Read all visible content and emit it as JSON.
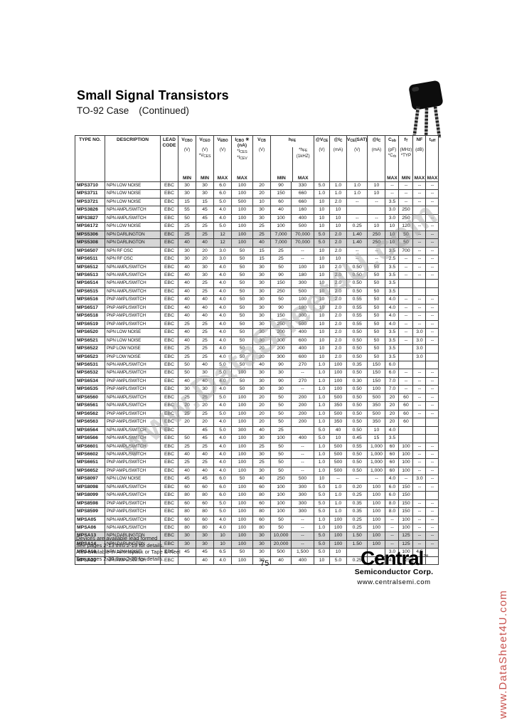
{
  "header": {
    "title": "Small Signal Transistors",
    "subtitle": "TO-92 Case",
    "continued": "(Continued)"
  },
  "table": {
    "columns": [
      {
        "key": "type",
        "w": 42,
        "label": "TYPE NO."
      },
      {
        "key": "desc",
        "w": 78,
        "label": "DESCRIPTION"
      },
      {
        "key": "lead",
        "w": 25,
        "label": "LEAD\nCODE"
      },
      {
        "key": "vcbo",
        "w": 25,
        "label": "V_{CBO}",
        "units": [
          "(V)"
        ],
        "mm": "MIN"
      },
      {
        "key": "vceo",
        "w": 25,
        "label": "V_{CEO}",
        "units": [
          "(V)",
          "*V_{CES}"
        ],
        "mm": "MIN"
      },
      {
        "key": "vebo",
        "w": 25,
        "label": "V_{EBO}",
        "units": [
          "(V)"
        ],
        "mm": "MAX"
      },
      {
        "key": "icbo",
        "w": 30,
        "label": "I_{CBO} ✳",
        "label2": "(nA)",
        "units": [
          "*I_{CES}",
          "*I_{CEV}"
        ],
        "mm": "MAX"
      },
      {
        "key": "vcb",
        "w": 25,
        "label": "V_{CB}",
        "units": [
          "(V)"
        ],
        "mm": ""
      },
      {
        "key": "hfe_min",
        "w": 29
      },
      {
        "key": "hfe_max",
        "w": 32
      },
      {
        "key": "vce",
        "w": 22,
        "label": "@V_{CE}",
        "units": [
          "(V)"
        ],
        "mm": ""
      },
      {
        "key": "ic",
        "w": 24,
        "label": "@I_{C}",
        "units": [
          "(mA)"
        ],
        "mm": ""
      },
      {
        "key": "vcesat",
        "w": 26,
        "label": "V_{CE}(SAT)",
        "units": [
          "(V)"
        ],
        "mm": ""
      },
      {
        "key": "ic2",
        "w": 25,
        "label": "@I_{C}",
        "units": [
          "(mA)"
        ],
        "mm": ""
      },
      {
        "key": "cob",
        "w": 19,
        "label": "C_{ob}",
        "units": [
          "(pF)",
          "*C_{rb}"
        ],
        "mm": "MAX"
      },
      {
        "key": "ft",
        "w": 20,
        "label": "f_{T}",
        "units": [
          "(MHz)",
          "*TYP"
        ],
        "mm": "MIN"
      },
      {
        "key": "nf",
        "w": 18,
        "label": "NF",
        "units": [
          "(dB)"
        ],
        "mm": "MAX"
      },
      {
        "key": "toff",
        "w": 18,
        "label": "t_{off}",
        "units": [],
        "mm": "MAX"
      }
    ],
    "hfe_group": {
      "label": "h_{FE}",
      "left_mm": "MIN",
      "right_units": [
        "*h_{FE}",
        "(1kHZ)"
      ],
      "right_mm": "MAX"
    },
    "rows": [
      [
        "MPS3710",
        "NPN LOW NOISE",
        "EBC",
        "30",
        "30",
        "6.0",
        "100",
        "20",
        "90",
        "330",
        "5.0",
        "1.0",
        "1.0",
        "10",
        "--",
        "--",
        "--",
        "--"
      ],
      [
        "MPS3711",
        "NPN LOW NOISE",
        "EBC",
        "30",
        "30",
        "6.0",
        "100",
        "20",
        "150",
        "660",
        "1.0",
        "1.0",
        "1.0",
        "10",
        "--",
        "--",
        "--",
        "--"
      ],
      [
        "MPS3721",
        "NPN LOW NOISE",
        "EBC",
        "15",
        "15",
        "5.0",
        "500",
        "10",
        "60",
        "660",
        "10",
        "2.0",
        "--",
        "--",
        "3.5",
        "--",
        "--",
        "--"
      ],
      [
        "MPS3826",
        "NPN AMPL/SWITCH",
        "EBC",
        "55",
        "45",
        "4.0",
        "100",
        "30",
        "40",
        "160",
        "10",
        "10",
        "",
        "",
        "3.0",
        "250",
        "",
        ""
      ],
      [
        "MPS3827",
        "NPN AMPL/SWITCH",
        "EBC",
        "50",
        "45",
        "4.0",
        "100",
        "30",
        "100",
        "400",
        "10",
        "10",
        "--",
        "--",
        "3.0",
        "250",
        "",
        "--"
      ],
      [
        "MPS6172",
        "NPN LOW NOISE",
        "EBC",
        "25",
        "25",
        "5.0",
        "100",
        "25",
        "100",
        "500",
        "10",
        "10",
        "0.25",
        "10",
        "10",
        "120",
        "--",
        "--"
      ],
      [
        "MPS5306",
        "NPN DARLINGTON",
        "EBC",
        "25",
        "25",
        "12",
        "100",
        "25",
        "7,000",
        "70,000",
        "5.0",
        "2.0",
        "1.40",
        "250",
        "10",
        "50",
        "--",
        "--"
      ],
      [
        "MPS5308",
        "NPN DARLINGTON",
        "EBC",
        "40",
        "40",
        "12",
        "100",
        "40",
        "7,000",
        "70,000",
        "5.0",
        "2.0",
        "1.40",
        "250",
        "10",
        "50",
        "--",
        "--"
      ],
      [
        "MPS6507",
        "NPN RF OSC",
        "EBC",
        "30",
        "20",
        "3.0",
        "50",
        "15",
        "25",
        "--",
        "10",
        "2.0",
        "--",
        "--",
        "3.5",
        "700",
        "--",
        "--"
      ],
      [
        "MPS6511",
        "NPN RF OSC",
        "EBC",
        "30",
        "20",
        "3.0",
        "50",
        "15",
        "25",
        "--",
        "10",
        "10",
        "--",
        "--",
        "2.5",
        "--",
        "--",
        "--"
      ],
      [
        "MPS6512",
        "NPN AMPL/SWITCH",
        "EBC",
        "40",
        "30",
        "4.0",
        "50",
        "30",
        "50",
        "100",
        "10",
        "2.0",
        "0.50",
        "50",
        "3.5",
        "--",
        "--",
        "--"
      ],
      [
        "MPS6513",
        "NPN AMPL/SWITCH",
        "EBC",
        "40",
        "30",
        "4.0",
        "50",
        "30",
        "90",
        "180",
        "10",
        "2.0",
        "0.50",
        "50",
        "3.5",
        "--",
        "--",
        "--"
      ],
      [
        "MPS6514",
        "NPN AMPL/SWITCH",
        "EBC",
        "40",
        "25",
        "4.0",
        "50",
        "30",
        "150",
        "300",
        "10",
        "2.0",
        "0.50",
        "50",
        "3.5",
        "",
        "",
        ""
      ],
      [
        "MPS6515",
        "NPN AMPL/SWITCH",
        "EBC",
        "40",
        "25",
        "4.0",
        "50",
        "30",
        "250",
        "500",
        "10",
        "2.0",
        "0.50",
        "50",
        "3.5",
        "",
        "",
        ""
      ],
      [
        "MPS6516",
        "PNP AMPL/SWITCH",
        "EBC",
        "40",
        "40",
        "4.0",
        "50",
        "30",
        "50",
        "100",
        "10",
        "2.0",
        "0.55",
        "50",
        "4.0",
        "--",
        "--",
        "--"
      ],
      [
        "MPS6517",
        "PNP AMPL/SWITCH",
        "EBC",
        "40",
        "40",
        "4.0",
        "50",
        "30",
        "90",
        "180",
        "10",
        "2.0",
        "0.55",
        "50",
        "4.0",
        "--",
        "--",
        "--"
      ],
      [
        "MPS6518",
        "PNP AMPL/SWITCH",
        "EBC",
        "40",
        "40",
        "4.0",
        "50",
        "30",
        "150",
        "300",
        "10",
        "2.0",
        "0.55",
        "50",
        "4.0",
        "--",
        "--",
        "--"
      ],
      [
        "MPS6519",
        "PNP AMPL/SWITCH",
        "EBC",
        "25",
        "25",
        "4.0",
        "50",
        "30",
        "250",
        "500",
        "10",
        "2.0",
        "0.55",
        "50",
        "4.0",
        "--",
        "--",
        "--"
      ],
      [
        "MPS6520",
        "NPN LOW NOISE",
        "EBC",
        "40",
        "25",
        "4.0",
        "50",
        "30",
        "200",
        "400",
        "10",
        "2.0",
        "0.50",
        "50",
        "3.5",
        "--",
        "3.0",
        "--"
      ],
      [
        "MPS6521",
        "NPN LOW NOISE",
        "EBC",
        "40",
        "25",
        "4.0",
        "50",
        "30",
        "300",
        "600",
        "10",
        "2.0",
        "0.50",
        "50",
        "3.5",
        "--",
        "3.0",
        "--"
      ],
      [
        "MPS6522",
        "PNP LOW NOISE",
        "EBC",
        "25",
        "25",
        "4.0",
        "50",
        "20",
        "200",
        "400",
        "10",
        "2.0",
        "0.50",
        "50",
        "3.5",
        "",
        "3.0",
        ""
      ],
      [
        "MPS6523",
        "PNP LOW NOISE",
        "EBC",
        "25",
        "25",
        "4.0",
        "50",
        "20",
        "300",
        "600",
        "10",
        "2.0",
        "0.50",
        "50",
        "3.5",
        "",
        "3.0",
        ""
      ],
      [
        "MPS6531",
        "NPN AMPL/SWITCH",
        "EBC",
        "50",
        "40",
        "5.0",
        "50",
        "40",
        "90",
        "270",
        "1.0",
        "100",
        "0.35",
        "150",
        "6.0",
        "",
        "",
        ""
      ],
      [
        "MPS6532",
        "NPN AMPL/SWITCH",
        "EBC",
        "50",
        "30",
        "5.0",
        "100",
        "30",
        "30",
        "--",
        "1.0",
        "100",
        "0.50",
        "150",
        "6.0",
        "--",
        "--",
        "--"
      ],
      [
        "MPS6534",
        "PNP AMPL/SWITCH",
        "EBC",
        "40",
        "40",
        "4.0",
        "50",
        "30",
        "90",
        "270",
        "1.0",
        "100",
        "0.30",
        "150",
        "7.0",
        "--",
        "--",
        "--"
      ],
      [
        "MPS6535",
        "PNP AMPL/SWITCH",
        "EBC",
        "30",
        "30",
        "4.0",
        "50",
        "30",
        "30",
        "--",
        "1.0",
        "100",
        "0.50",
        "100",
        "7.0",
        "--",
        "--",
        "--"
      ],
      [
        "MPS6560",
        "NPN AMPL/SWITCH",
        "EBC",
        "25",
        "25",
        "5.0",
        "100",
        "20",
        "50",
        "200",
        "1.0",
        "500",
        "0.50",
        "500",
        "20",
        "60",
        "--",
        "--"
      ],
      [
        "MPS6561",
        "NPN AMPL/SWITCH",
        "EBC",
        "20",
        "20",
        "4.0",
        "100",
        "20",
        "50",
        "200",
        "1.0",
        "350",
        "0.50",
        "350",
        "20",
        "60",
        "--",
        "--"
      ],
      [
        "MPS6562",
        "PNP AMPL/SWITCH",
        "EBC",
        "25",
        "25",
        "5.0",
        "100",
        "20",
        "50",
        "200",
        "1.0",
        "500",
        "0.50",
        "500",
        "20",
        "60",
        "--",
        "--"
      ],
      [
        "MPS6563",
        "PNP AMPL/SWITCH",
        "EBC",
        "20",
        "20",
        "4.0",
        "100",
        "20",
        "50",
        "200",
        "1.0",
        "350",
        "0.50",
        "350",
        "20",
        "60",
        "",
        ""
      ],
      [
        "MPS6564",
        "NPN AMPL/SWITCH",
        "EBC",
        "",
        "45",
        "5.0",
        "300",
        "40",
        "25",
        "",
        "5.0",
        "40",
        "0.50",
        "10",
        "4.0",
        "",
        "",
        ""
      ],
      [
        "MPS6566",
        "NPN AMPL/SWITCH",
        "EBC",
        "50",
        "45",
        "4.0",
        "100",
        "30",
        "100",
        "400",
        "5.0",
        "10",
        "0.45",
        "15",
        "3.5",
        "",
        "",
        ""
      ],
      [
        "MPS6601",
        "NPN AMPL/SWITCH",
        "EBC",
        "25",
        "25",
        "4.0",
        "100",
        "25",
        "50",
        "--",
        "1.0",
        "500",
        "0.55",
        "1,000",
        "60",
        "100",
        "--",
        "--"
      ],
      [
        "MPS6602",
        "NPN AMPL/SWITCH",
        "EBC",
        "40",
        "40",
        "4.0",
        "100",
        "30",
        "50",
        "--",
        "1.0",
        "500",
        "0.50",
        "1,000",
        "60",
        "100",
        "--",
        "--"
      ],
      [
        "MPS6651",
        "PNP AMPL/SWITCH",
        "EBC",
        "25",
        "25",
        "4.0",
        "100",
        "25",
        "50",
        "--",
        "1.0",
        "500",
        "0.50",
        "1,000",
        "60",
        "100",
        "--",
        "--"
      ],
      [
        "MPS6652",
        "PNP AMPL/SWITCH",
        "EBC",
        "40",
        "40",
        "4.0",
        "100",
        "30",
        "50",
        "--",
        "1.0",
        "500",
        "0.50",
        "1,000",
        "60",
        "100",
        "--",
        "--"
      ],
      [
        "MPS8097",
        "NPN LOW NOISE",
        "EBC",
        "45",
        "45",
        "6.0",
        "50",
        "40",
        "250",
        "500",
        "10",
        "--",
        "--",
        "--",
        "4.0",
        "--",
        "3.0",
        "--"
      ],
      [
        "MPS8098",
        "NPN AMPL/SWITCH",
        "EBC",
        "60",
        "60",
        "6.0",
        "100",
        "60",
        "100",
        "300",
        "5.0",
        "1.0",
        "0.20",
        "100",
        "6.0",
        "150",
        "--",
        "--"
      ],
      [
        "MPS8099",
        "NPN AMPL/SWITCH",
        "EBC",
        "80",
        "80",
        "6.0",
        "100",
        "80",
        "100",
        "300",
        "5.0",
        "1.0",
        "0.25",
        "100",
        "6.0",
        "150",
        "",
        ""
      ],
      [
        "MPS8598",
        "PNP AMPL/SWITCH",
        "EBC",
        "60",
        "60",
        "5.0",
        "100",
        "60",
        "100",
        "300",
        "5.0",
        "1.0",
        "0.35",
        "100",
        "8.0",
        "150",
        "--",
        "--"
      ],
      [
        "MPS8599",
        "PNP AMPL/SWITCH",
        "EBC",
        "80",
        "80",
        "5.0",
        "100",
        "80",
        "100",
        "300",
        "5.0",
        "1.0",
        "0.35",
        "100",
        "8.0",
        "150",
        "--",
        "--"
      ],
      [
        "MPSA05",
        "NPN AMPL/SWITCH",
        "EBC",
        "60",
        "60",
        "4.0",
        "100",
        "60",
        "50",
        "--",
        "1.0",
        "100",
        "0.25",
        "100",
        "--",
        "100",
        "--",
        "--"
      ],
      [
        "MPSA06",
        "NPN AMPL/SWITCH",
        "EBC",
        "80",
        "80",
        "4.0",
        "100",
        "80",
        "50",
        "--",
        "1.0",
        "100",
        "0.25",
        "100",
        "--",
        "100",
        "--",
        "--"
      ],
      [
        "MPSA13",
        "NPN DARLINGTON",
        "EBC",
        "30",
        "30",
        "10",
        "100",
        "30",
        "10,000",
        "--",
        "5.0",
        "100",
        "1.50",
        "100",
        "--",
        "125",
        "--",
        "--"
      ],
      [
        "MPSA14",
        "NPN DARLINGTON",
        "EBC",
        "30",
        "30",
        "10",
        "100",
        "30",
        "20,000",
        "--",
        "5.0",
        "100",
        "1.50",
        "100",
        "--",
        "125",
        "--",
        "--"
      ],
      [
        "MPSA18",
        "NPN LOW NOISE",
        "EBC",
        "45",
        "45",
        "6.5",
        "50",
        "30",
        "500",
        "1,500",
        "5.0",
        "10",
        "",
        "",
        "3.0",
        "100",
        "4.5",
        ""
      ],
      [
        "MPSA20",
        "NPN AMPL/SWITCH",
        "EBC",
        "",
        "40",
        "4.0",
        "100",
        "30",
        "40",
        "400",
        "10",
        "5.0",
        "0.25",
        "10",
        "4.0",
        "125",
        "",
        ""
      ]
    ],
    "shaded_rows": [
      "MPS5306",
      "MPS5308",
      "MPSA13",
      "MPSA14"
    ],
    "group_start_rows": [
      "MPS6172",
      "MPS6507",
      "MPS6531",
      "MPS6561",
      "MPS6601",
      "MPS8098",
      "MPSA13",
      "MPSA18"
    ]
  },
  "footer": {
    "notes": [
      "Devices are available lead formed",
      "See pages 2-13 thru 2-19 for details.",
      "Also available in Ammopack or Tape & Reel",
      "See pages 2-30 thru 2-35 for details."
    ],
    "page_number": "75"
  },
  "logo": {
    "name": "Central",
    "tm": "™",
    "line2": "Semiconductor Corp.",
    "url": "www.centralsemi.com"
  },
  "watermarks": {
    "diagonal": "www.DataSheet4U.com",
    "side": "www.DataSheet4U.com"
  }
}
